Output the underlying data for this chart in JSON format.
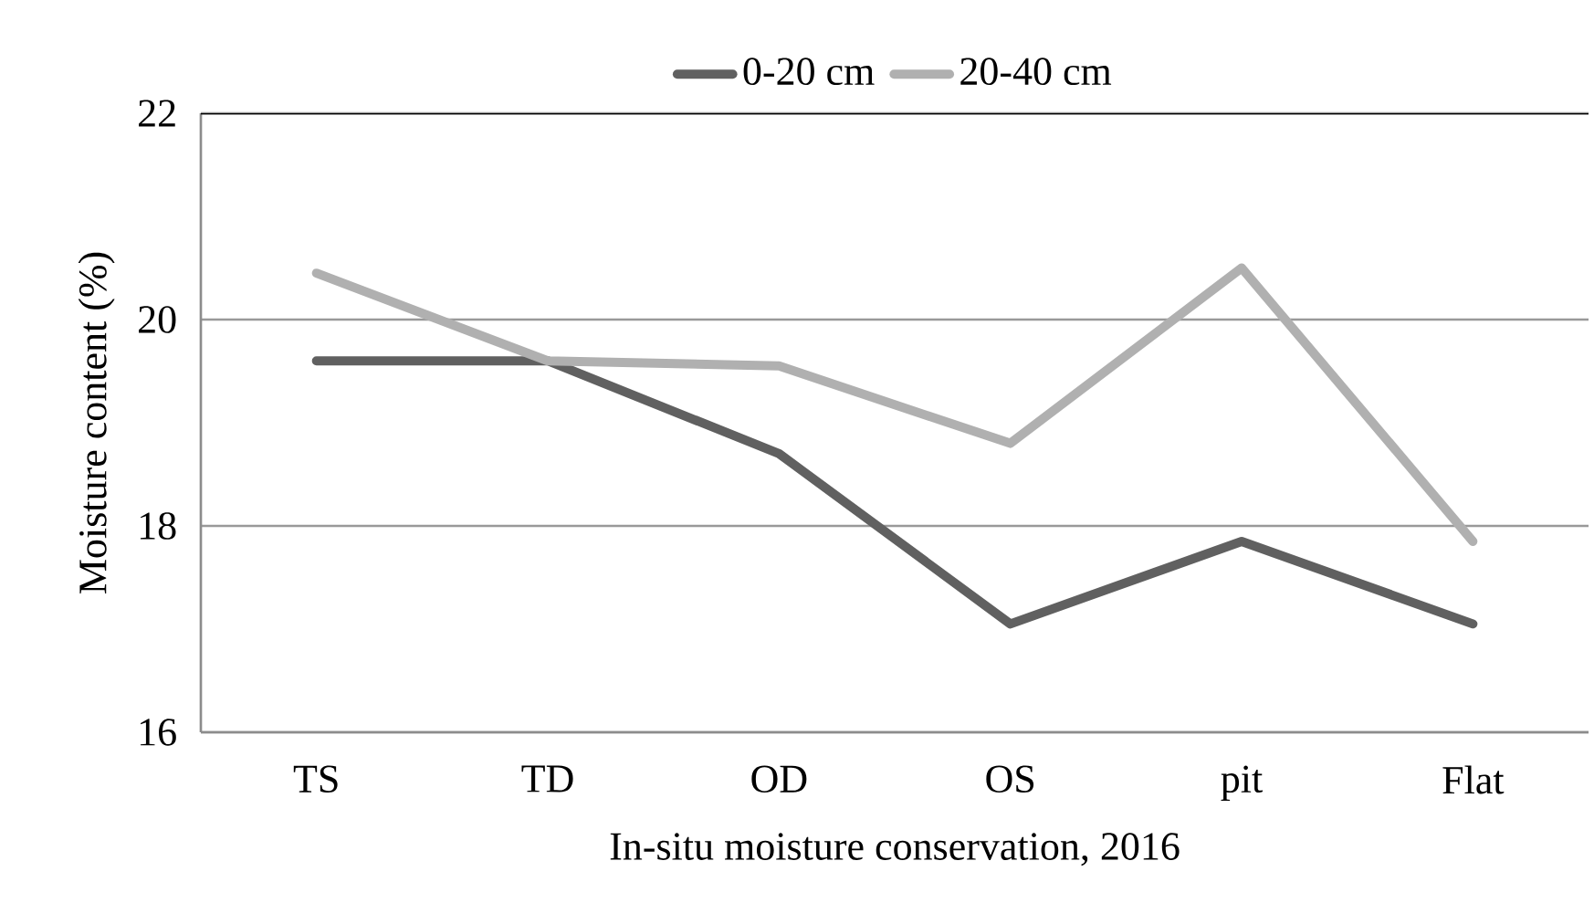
{
  "chart_data": {
    "type": "line",
    "xlabel": "In-situ moisture conservation, 2016",
    "ylabel": "Moisture content (%)",
    "categories": [
      "TS",
      "TD",
      "OD",
      "OS",
      "pit",
      "Flat"
    ],
    "series": [
      {
        "name": "0-20 cm",
        "color": "#606060",
        "values": [
          19.6,
          19.6,
          18.7,
          17.05,
          17.85,
          17.05
        ]
      },
      {
        "name": "20-40 cm",
        "color": "#b0b0b0",
        "values": [
          20.45,
          19.6,
          19.55,
          18.8,
          20.5,
          17.85
        ]
      }
    ],
    "ylim": [
      16,
      22
    ],
    "yticks": [
      16,
      18,
      20,
      22
    ],
    "grid": "y",
    "legend": "top",
    "marker": "none",
    "line_style": "solid"
  }
}
